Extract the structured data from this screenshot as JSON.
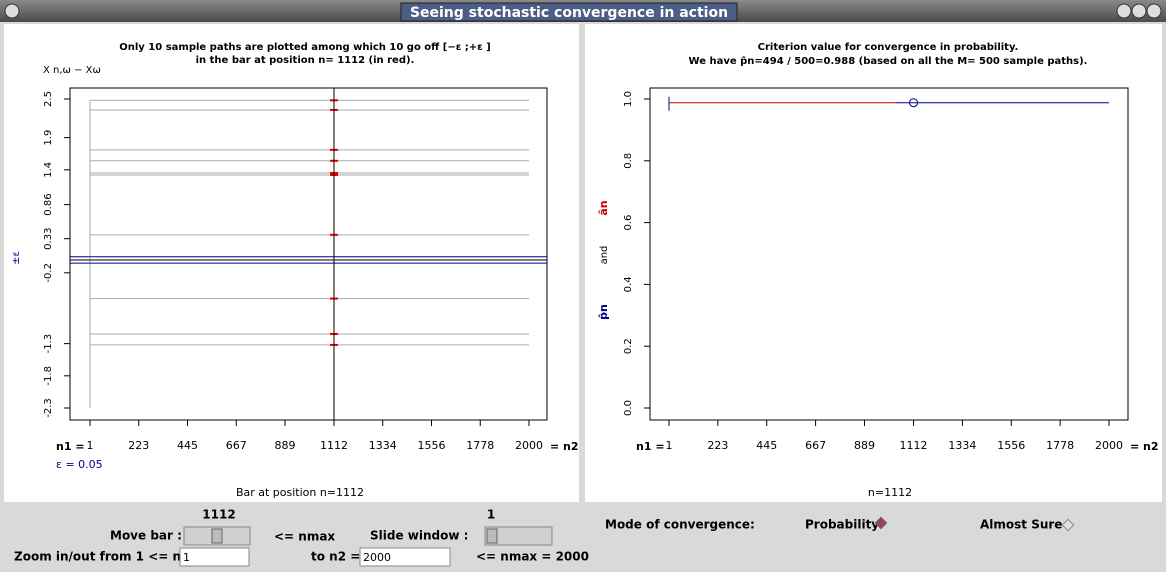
{
  "window": {
    "title": "Seeing stochastic convergence in action"
  },
  "left_plot": {
    "title_lines": [
      "Only 10 sample paths are plotted among which 10 go off [−ε ;+ε ]",
      "in the bar at position n= 1112 (in red)."
    ],
    "y_label": "X n,ω − Xω",
    "band_label": "±ε",
    "xlim": [
      1,
      2000
    ],
    "xticks": [
      1,
      223,
      445,
      667,
      889,
      1112,
      1334,
      1556,
      1778,
      2000
    ],
    "ylim": [
      -2.3,
      2.5
    ],
    "yticks": [
      2.5,
      1.9,
      1.4,
      0.86,
      0.33,
      -0.2,
      -1.3,
      -1.8,
      -2.3
    ],
    "n1_label": "n1 =",
    "n2_label": "= n2",
    "epsilon": {
      "value": 0.05,
      "label": "ε = 0.05"
    },
    "bar_position": 1112,
    "paths": [
      2.48,
      2.33,
      1.71,
      1.54,
      1.35,
      1.32,
      0.39,
      -0.6,
      -1.15,
      -1.32
    ],
    "caption": "Bar at position n=1112"
  },
  "right_plot": {
    "title_lines": [
      "Criterion value for convergence in probability.",
      "We have  p̂n=494 / 500=0.988 (based on all the M= 500 sample paths)."
    ],
    "y_label_p": "p̂n",
    "y_label_and": "and",
    "y_label_a": "ân",
    "xlim": [
      1,
      2000
    ],
    "xticks": [
      1,
      223,
      445,
      667,
      889,
      1112,
      1334,
      1556,
      1778,
      2000
    ],
    "ylim": [
      0,
      1
    ],
    "yticks": [
      {
        "value": 0,
        "label": "0.0"
      },
      {
        "value": 0.2,
        "label": "0.2"
      },
      {
        "value": 0.4,
        "label": "0.4"
      },
      {
        "value": 0.6,
        "label": "0.6"
      },
      {
        "value": 0.8,
        "label": "0.8"
      },
      {
        "value": 1,
        "label": "1.0"
      }
    ],
    "n1_label": "n1 =",
    "n2_label": "= n2",
    "p_hat": 0.988,
    "a_hat_until": 1030,
    "marker_at": 1112,
    "caption": "n=1112"
  },
  "controls": {
    "move_bar_value": "1112",
    "move_bar_label": "Move bar :",
    "nmax_label": "<=   nmax",
    "slide_value": "1",
    "slide_label": "Slide window :",
    "zoom_label": "Zoom in/out from 1 <= n1 =",
    "n1_input": "1",
    "to_n2_label": "to n2 =",
    "n2_input": "2000",
    "nmax_note": "<= nmax = 2000",
    "mode_label": "Mode of convergence:",
    "option_probability": "Probability",
    "option_almost_sure": "Almost Sure"
  }
}
